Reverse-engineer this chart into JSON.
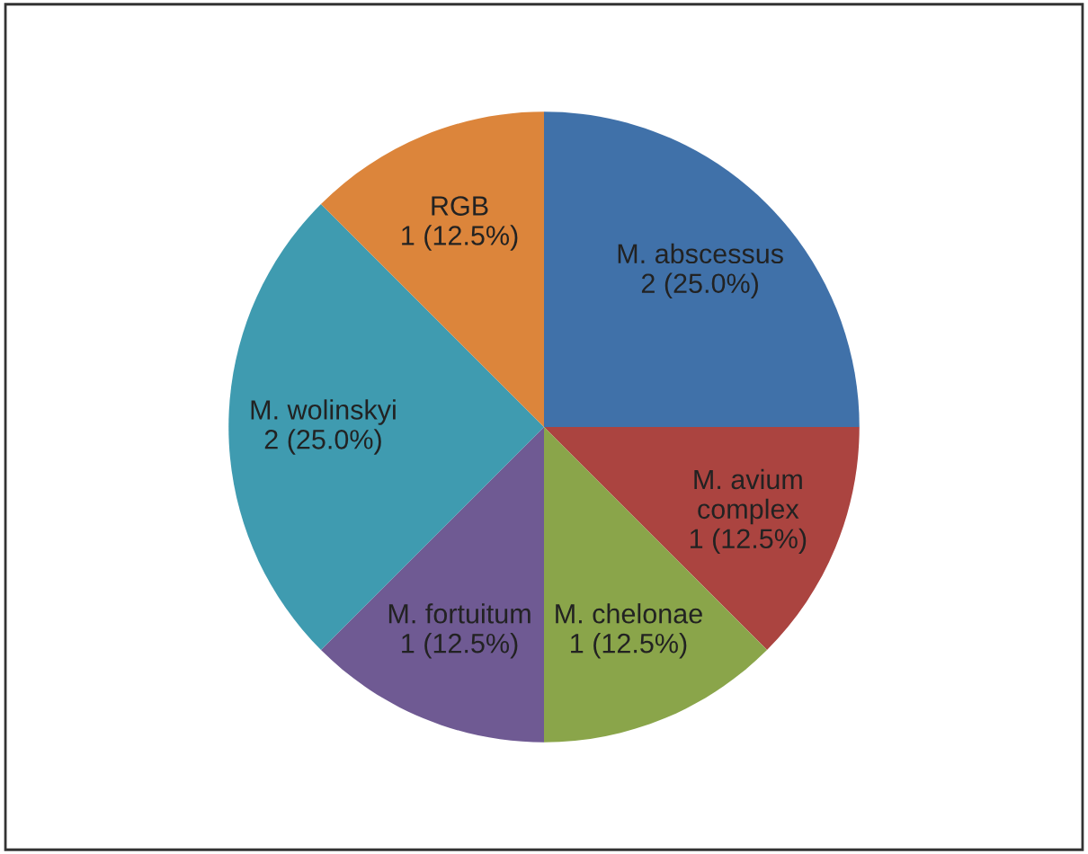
{
  "chart_data": {
    "type": "pie",
    "categories": [
      "M. abscessus",
      "M. avium\ncomplex",
      "M. chelonae",
      "M. fortuitum",
      "M. wolinskyi",
      "RGB"
    ],
    "values": [
      2,
      1,
      1,
      1,
      2,
      1
    ],
    "value_labels": [
      "2 (25.0%)",
      "1 (12.5%)",
      "1 (12.5%)",
      "1 (12.5%)",
      "2 (25.0%)",
      "1 (12.5%)"
    ],
    "colors": [
      "#4071a9",
      "#ab4440",
      "#8aa54a",
      "#6f5a93",
      "#3f9bb0",
      "#dc853b"
    ]
  }
}
